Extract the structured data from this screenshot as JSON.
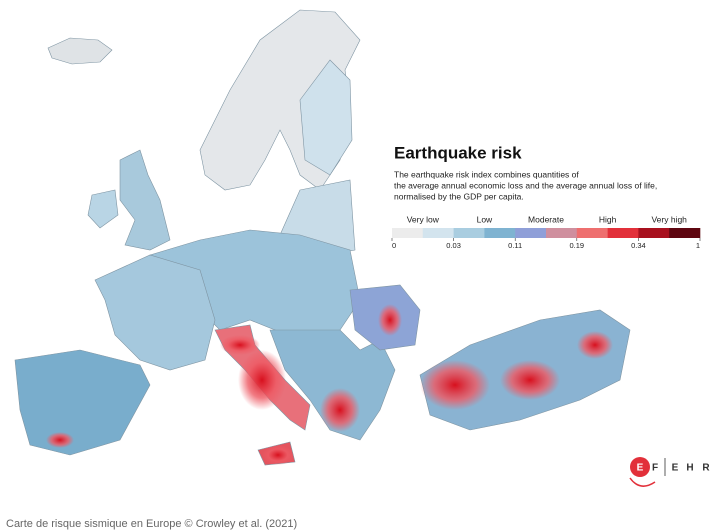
{
  "title": "Earthquake risk",
  "description": [
    "The earthquake risk index combines quantities of",
    "the average annual economic loss and the average annual loss of life,",
    "normalised by the GDP per capita."
  ],
  "legend": {
    "classes": [
      "Very low",
      "Low",
      "Moderate",
      "High",
      "Very high"
    ],
    "colors": [
      "#ececec",
      "#d3e4ee",
      "#a9cde0",
      "#7fb3d1",
      "#8f9fd8",
      "#cf8f9e",
      "#ee6f6f",
      "#e2303a",
      "#a8101e",
      "#5e0610"
    ],
    "ticks": [
      0,
      0.03,
      0.11,
      0.19,
      0.34,
      1
    ]
  },
  "logo": [
    "E",
    "F",
    "E",
    "H",
    "R"
  ],
  "caption": "Carte de risque sismique en Europe © Crowley et al. (2021)"
}
